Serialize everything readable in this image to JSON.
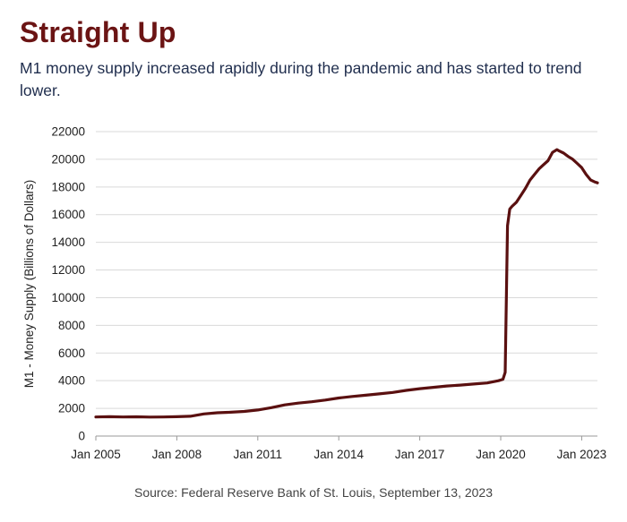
{
  "header": {
    "title": "Straight Up",
    "subtitle": "M1 money supply increased rapidly during the pandemic and has started to trend lower."
  },
  "footer": {
    "source": "Source: Federal Reserve Bank of St. Louis, September 13, 2023"
  },
  "colors": {
    "line": "#5a1010",
    "title": "#6b1414",
    "subtitle": "#1f2d4d",
    "grid": "#d9d9d9"
  },
  "chart_data": {
    "type": "line",
    "title": "Straight Up",
    "subtitle": "M1 money supply increased rapidly during the pandemic and has started to trend lower.",
    "xlabel": "",
    "ylabel": "M1 - Money Supply (Billions of Dollars)",
    "ylim": [
      0,
      22000
    ],
    "yticks": [
      0,
      2000,
      4000,
      6000,
      8000,
      10000,
      12000,
      14000,
      16000,
      18000,
      20000,
      22000
    ],
    "ytick_labels": [
      "0",
      "2000",
      "4000",
      "6000",
      "8000",
      "10000",
      "12000",
      "14000",
      "16000",
      "18000",
      "20000",
      "22000"
    ],
    "xlim": [
      "2005-01",
      "2023-08"
    ],
    "xticks": [
      "2005-01",
      "2008-01",
      "2011-01",
      "2014-01",
      "2017-01",
      "2020-01",
      "2023-01"
    ],
    "xtick_labels": [
      "Jan 2005",
      "Jan 2008",
      "Jan 2011",
      "Jan 2014",
      "Jan 2017",
      "Jan 2020",
      "Jan 2023"
    ],
    "grid": "horizontal",
    "series": [
      {
        "x": [
          "2005-01",
          "2005-07",
          "2006-01",
          "2006-07",
          "2007-01",
          "2007-07",
          "2008-01",
          "2008-07",
          "2009-01",
          "2009-07",
          "2010-01",
          "2010-07",
          "2011-01",
          "2011-07",
          "2012-01",
          "2012-07",
          "2013-01",
          "2013-07",
          "2014-01",
          "2014-07",
          "2015-01",
          "2015-07",
          "2016-01",
          "2016-07",
          "2017-01",
          "2017-07",
          "2018-01",
          "2018-07",
          "2019-01",
          "2019-07",
          "2019-12",
          "2020-02",
          "2020-03",
          "2020-04",
          "2020-05",
          "2020-06",
          "2020-08",
          "2020-10",
          "2020-12",
          "2021-02",
          "2021-04",
          "2021-06",
          "2021-08",
          "2021-10",
          "2021-12",
          "2022-02",
          "2022-03",
          "2022-05",
          "2022-07",
          "2022-09",
          "2022-11",
          "2023-01",
          "2023-03",
          "2023-05",
          "2023-07",
          "2023-08"
        ],
        "values": [
          1380,
          1400,
          1380,
          1390,
          1370,
          1380,
          1400,
          1430,
          1600,
          1680,
          1720,
          1780,
          1880,
          2050,
          2250,
          2380,
          2480,
          2600,
          2750,
          2860,
          2950,
          3050,
          3150,
          3300,
          3420,
          3520,
          3620,
          3680,
          3760,
          3840,
          4000,
          4100,
          4600,
          15200,
          16400,
          16600,
          16900,
          17400,
          17900,
          18500,
          18900,
          19300,
          19600,
          19900,
          20500,
          20700,
          20600,
          20450,
          20200,
          20000,
          19700,
          19400,
          18900,
          18500,
          18350,
          18300
        ]
      }
    ]
  }
}
